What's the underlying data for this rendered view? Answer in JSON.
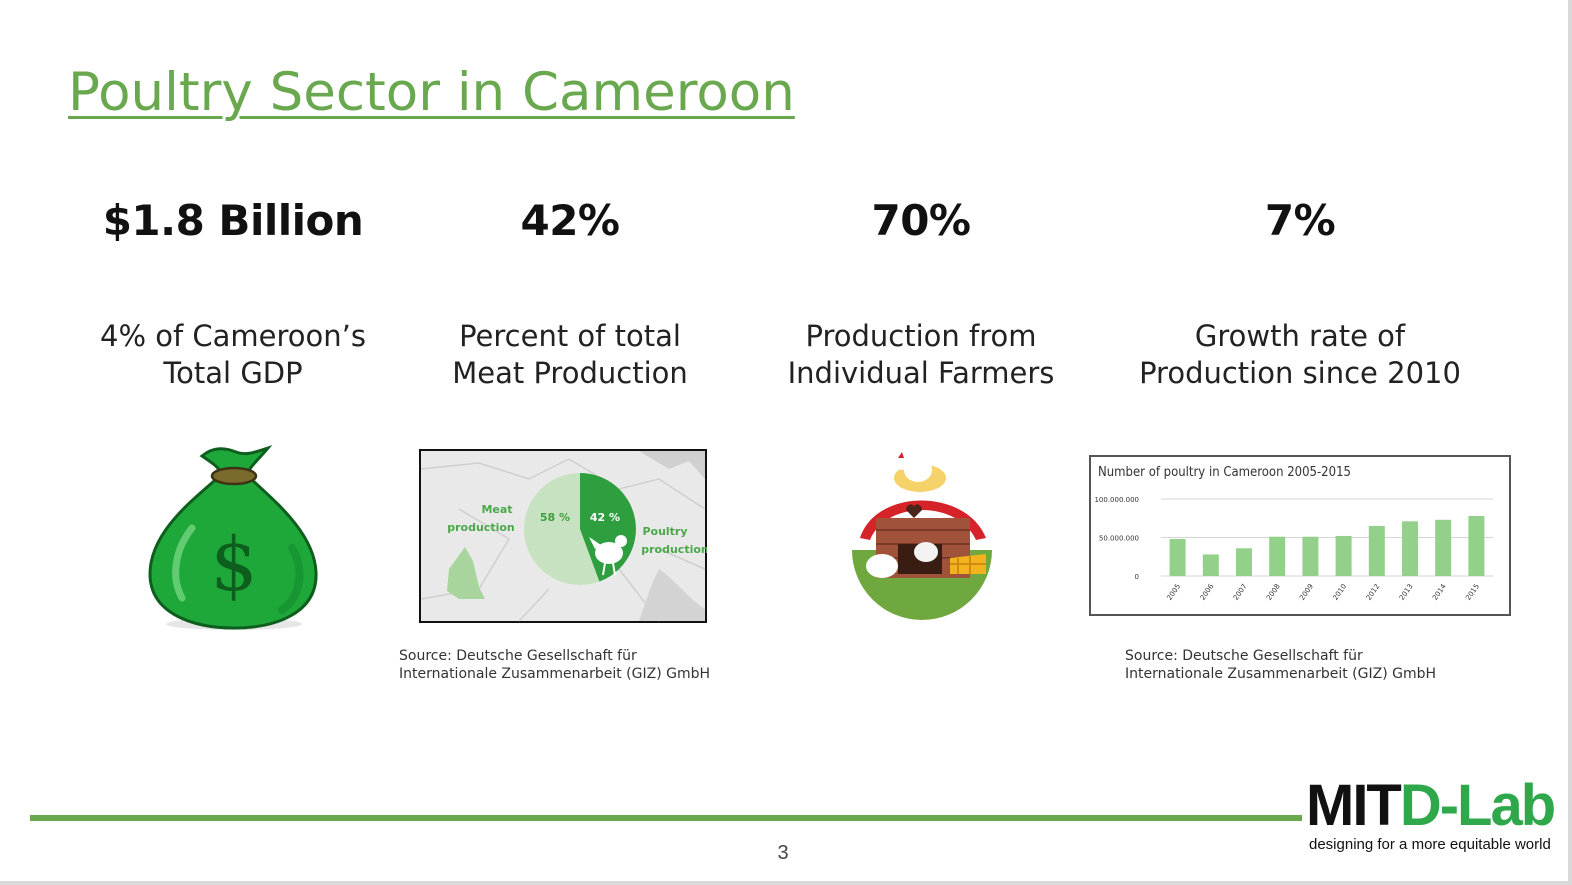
{
  "slide": {
    "title": "Poultry Sector in Cameroon",
    "page_number": "3"
  },
  "stats": [
    {
      "value": "$1.8 Billion",
      "desc_line1": "4% of  Cameroon’s",
      "desc_line2": "Total GDP"
    },
    {
      "value": "42%",
      "desc_line1": "Percent of total",
      "desc_line2": "Meat Production"
    },
    {
      "value": "70%",
      "desc_line1": "Production from",
      "desc_line2": "Individual Farmers"
    },
    {
      "value": "7%",
      "desc_line1": "Growth rate of",
      "desc_line2": "Production since 2010"
    }
  ],
  "sources": [
    {
      "line1": "Source: Deutsche Gesellschaft für",
      "line2": "Internationale Zusammenarbeit (GIZ) GmbH"
    },
    {
      "line1": "Source: Deutsche Gesellschaft für",
      "line2": "Internationale Zusammenarbeit (GIZ) GmbH"
    }
  ],
  "pie_image": {
    "meat_label_1": "Meat",
    "meat_label_2": "production",
    "poultry_label_1": "Poultry",
    "poultry_label_2": "production",
    "meat_pct_label": "58 %",
    "poultry_pct_label": "42 %"
  },
  "chart_data": {
    "type": "bar",
    "title": "Number of poultry in Cameroon 2005-2015",
    "categories": [
      "2005",
      "2006",
      "2007",
      "2008",
      "2009",
      "2010",
      "2012",
      "2013",
      "2014",
      "2015"
    ],
    "values": [
      48000000,
      28000000,
      36000000,
      51000000,
      51000000,
      52000000,
      65000000,
      71000000,
      73000000,
      78000000
    ],
    "ytick_labels": [
      "100.000.000",
      "50.000.000",
      "0"
    ],
    "ytick_values": [
      100000000,
      50000000,
      0
    ],
    "ylim": [
      0,
      100000000
    ],
    "xlabel": "",
    "ylabel": "",
    "grid": true
  },
  "logo": {
    "mit": "MIT",
    "dlab": "D-Lab",
    "tagline": "designing for a more equitable world"
  },
  "colors": {
    "accent": "#6aa84f",
    "bar": "#93d089",
    "logo_green": "#2ea84a",
    "money_bag": "#1fa83a",
    "pie_dark": "#2f9e3f",
    "pie_light": "#c6e2c0"
  },
  "icons": [
    "money-bag-icon",
    "chicken-coop-icon",
    "chicken-icon"
  ]
}
